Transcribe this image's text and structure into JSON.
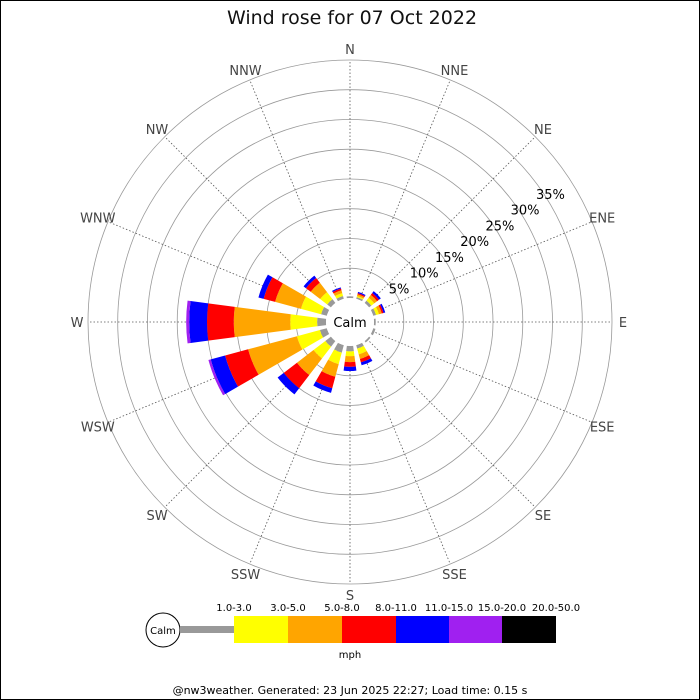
{
  "title": "Wind rose for 07 Oct 2022",
  "footer": "@nw3weather. Generated: 23 Jun 2025 22:27; Load time: 0.15 s",
  "chart_data": {
    "type": "windrose",
    "title": "Wind rose for 07 Oct 2022",
    "units": "mph",
    "calm_label": "Calm",
    "directions": [
      "N",
      "NNE",
      "NE",
      "ENE",
      "E",
      "ESE",
      "SE",
      "SSE",
      "S",
      "SSW",
      "SW",
      "WSW",
      "W",
      "WNW",
      "NW",
      "NNW"
    ],
    "radial_ticks": [
      5,
      10,
      15,
      20,
      25,
      30,
      35
    ],
    "radial_tick_labels": [
      "5%",
      "10%",
      "15%",
      "20%",
      "25%",
      "30%",
      "35%"
    ],
    "radial_max": 40,
    "bins": [
      {
        "label": "1.0-3.0",
        "color": "#999999"
      },
      {
        "label": "3.0-5.0",
        "color": "#ffff00"
      },
      {
        "label": "5.0-8.0",
        "color": "#ffa500"
      },
      {
        "label": "8.0-11.0",
        "color": "#ff0000"
      },
      {
        "label": "11.0-15.0",
        "color": "#0000ff"
      },
      {
        "label": "15.0-20.0",
        "color": "#a020f0"
      },
      {
        "label": "20.0-50.0",
        "color": "#000000"
      }
    ],
    "series": [
      {
        "direction": "N",
        "values": [
          0.3,
          0,
          0,
          0,
          0,
          0,
          0
        ]
      },
      {
        "direction": "NNE",
        "values": [
          0.3,
          0.2,
          0.3,
          0.2,
          0.2,
          0,
          0
        ]
      },
      {
        "direction": "NE",
        "values": [
          0.5,
          0.6,
          0.6,
          0.4,
          0.4,
          0,
          0
        ]
      },
      {
        "direction": "ENE",
        "values": [
          0.5,
          0.5,
          0.5,
          0.3,
          0.3,
          0,
          0
        ]
      },
      {
        "direction": "E",
        "values": [
          0.3,
          0,
          0,
          0,
          0,
          0,
          0
        ]
      },
      {
        "direction": "ESE",
        "values": [
          0.4,
          0,
          0,
          0,
          0,
          0,
          0
        ]
      },
      {
        "direction": "SE",
        "values": [
          0.3,
          0,
          0,
          0,
          0,
          0,
          0
        ]
      },
      {
        "direction": "SSE",
        "values": [
          0.6,
          1.0,
          0.8,
          0.6,
          0.5,
          0,
          0
        ]
      },
      {
        "direction": "S",
        "values": [
          0.9,
          0.8,
          1.0,
          0.8,
          0.7,
          0,
          0
        ]
      },
      {
        "direction": "SSW",
        "values": [
          1.3,
          2.0,
          2.2,
          2.0,
          0.8,
          0,
          0
        ]
      },
      {
        "direction": "SW",
        "values": [
          1.2,
          2.5,
          3.5,
          2.8,
          1.3,
          0,
          0
        ]
      },
      {
        "direction": "WSW",
        "values": [
          1.2,
          4.0,
          8.5,
          4.0,
          2.5,
          0.4,
          0
        ]
      },
      {
        "direction": "W",
        "values": [
          1.5,
          4.5,
          9.5,
          4.5,
          3.0,
          0.5,
          0
        ]
      },
      {
        "direction": "WNW",
        "values": [
          1.0,
          3.5,
          4.5,
          2.0,
          0.9,
          0,
          0
        ]
      },
      {
        "direction": "NW",
        "values": [
          0.8,
          1.5,
          2.0,
          1.0,
          0.5,
          0,
          0
        ]
      },
      {
        "direction": "NNW",
        "values": [
          0.5,
          0.5,
          0.5,
          0.3,
          0.2,
          0,
          0
        ]
      }
    ]
  }
}
